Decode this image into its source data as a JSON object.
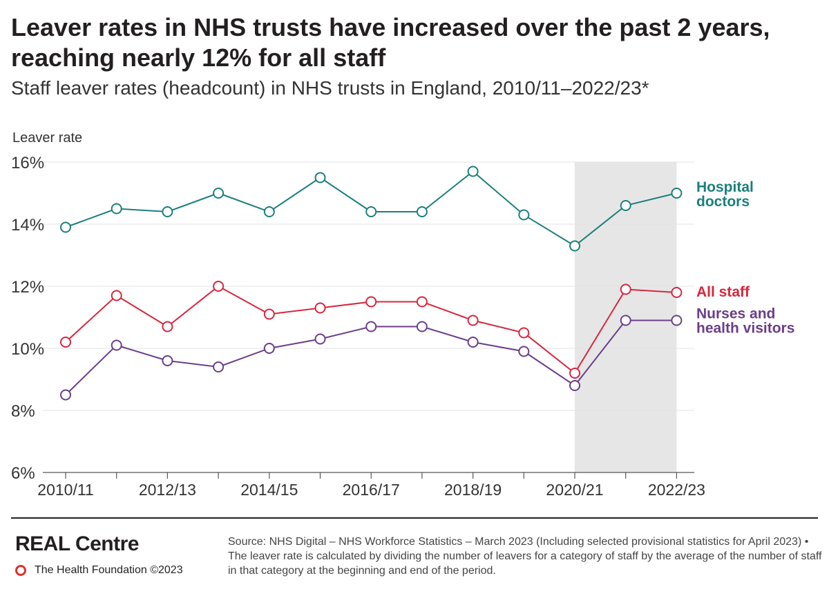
{
  "title": "Leaver rates in NHS trusts have increased over the past 2 years, reaching nearly 12% for all staff",
  "subtitle": "Staff leaver rates (headcount) in NHS trusts in England, 2010/11–2022/23*",
  "footer": {
    "brand": "REAL Centre",
    "foundation": "The Health Foundation ©2023",
    "source": "Source: NHS Digital – NHS Workforce Statistics – March 2023 (Including selected provisional statistics for April 2023) • The leaver rate is calculated by dividing the number of leavers for a category of staff by the average of the number of staff in that category at the beginning and end of the period."
  },
  "chart_data": {
    "type": "line",
    "ylabel": "Leaver rate",
    "ylim": [
      6,
      16
    ],
    "yticks": [
      6,
      8,
      10,
      12,
      14,
      16
    ],
    "ytick_labels": [
      "6%",
      "8%",
      "10%",
      "12%",
      "14%",
      "16%"
    ],
    "x": [
      "2010/11",
      "2011/12",
      "2012/13",
      "2013/14",
      "2014/15",
      "2015/16",
      "2016/17",
      "2017/18",
      "2018/19",
      "2019/20",
      "2020/21",
      "2021/22",
      "2022/23"
    ],
    "xtick_labels": [
      "2010/11",
      "",
      "2012/13",
      "",
      "2014/15",
      "",
      "2016/17",
      "",
      "2018/19",
      "",
      "2020/21",
      "",
      "2022/23"
    ],
    "shaded_range": [
      "2020/21",
      "2022/23"
    ],
    "grid": true,
    "series": [
      {
        "name": "Hospital doctors",
        "color": "#1a7f7c",
        "values": [
          13.9,
          14.5,
          14.4,
          15.0,
          14.4,
          15.5,
          14.4,
          14.4,
          15.7,
          14.3,
          13.3,
          14.6,
          15.0
        ]
      },
      {
        "name": "All staff",
        "color": "#d7263d",
        "values": [
          10.2,
          11.7,
          10.7,
          12.0,
          11.1,
          11.3,
          11.5,
          11.5,
          10.9,
          10.5,
          9.2,
          11.9,
          11.8
        ]
      },
      {
        "name": "Nurses and health visitors",
        "color": "#6b3d8a",
        "values": [
          8.5,
          10.1,
          9.6,
          9.4,
          10.0,
          10.3,
          10.7,
          10.7,
          10.2,
          9.9,
          8.8,
          10.9,
          10.9
        ]
      }
    ],
    "series_label_lines": [
      [
        "Hospital",
        "doctors"
      ],
      [
        "All staff"
      ],
      [
        "Nurses and",
        "health visitors"
      ]
    ]
  }
}
